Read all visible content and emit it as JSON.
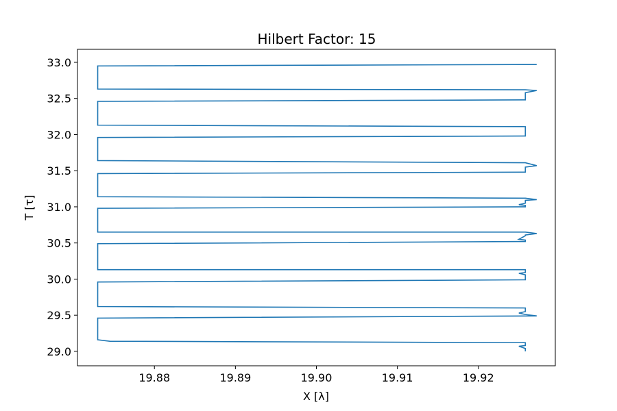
{
  "chart_data": {
    "type": "line",
    "title": "Hilbert Factor: 15",
    "xlabel": "X [λ]",
    "ylabel": "T [τ]",
    "xlim": [
      19.8705,
      19.9295
    ],
    "ylim": [
      28.8,
      33.18
    ],
    "x_ticks": [
      19.88,
      19.89,
      19.9,
      19.91,
      19.92
    ],
    "x_tick_labels": [
      "19.88",
      "19.89",
      "19.90",
      "19.91",
      "19.92"
    ],
    "y_ticks": [
      29.0,
      29.5,
      30.0,
      30.5,
      31.0,
      31.5,
      32.0,
      32.5,
      33.0
    ],
    "y_tick_labels": [
      "29.0",
      "29.5",
      "30.0",
      "30.5",
      "31.0",
      "31.5",
      "32.0",
      "32.5",
      "33.0"
    ],
    "grid": false,
    "line_color": "#1f77b4",
    "series": [
      {
        "x": [
          19.9258,
          19.9258,
          19.925,
          19.9258,
          19.9258,
          19.8745,
          19.873,
          19.873,
          19.9272,
          19.9258,
          19.925,
          19.9258,
          19.9258,
          19.873,
          19.873,
          19.9258,
          19.9258,
          19.925,
          19.9258,
          19.9258,
          19.873,
          19.873,
          19.9258,
          19.9258,
          19.925,
          19.9258,
          19.9258,
          19.9272,
          19.9258,
          19.873,
          19.873,
          19.9258,
          19.9258,
          19.925,
          19.9258,
          19.9258,
          19.9272,
          19.9258,
          19.873,
          19.873,
          19.9258,
          19.9258,
          19.9272,
          19.9258,
          19.873,
          19.873,
          19.9258,
          19.9258,
          19.873,
          19.873,
          19.9258,
          19.9258,
          19.9272,
          19.9258,
          19.873,
          19.873,
          19.9272
        ],
        "y": [
          29.0,
          29.04,
          29.07,
          29.08,
          29.12,
          29.14,
          29.16,
          29.46,
          29.49,
          29.51,
          29.53,
          29.55,
          29.6,
          29.62,
          29.96,
          29.99,
          30.06,
          30.08,
          30.09,
          30.13,
          30.13,
          30.49,
          30.52,
          30.54,
          30.55,
          30.6,
          30.61,
          30.63,
          30.65,
          30.65,
          30.98,
          31.0,
          31.02,
          31.03,
          31.05,
          31.09,
          31.1,
          31.12,
          31.14,
          31.46,
          31.48,
          31.55,
          31.57,
          31.61,
          31.64,
          31.96,
          31.98,
          32.11,
          32.13,
          32.46,
          32.48,
          32.58,
          32.61,
          32.62,
          32.63,
          32.95,
          32.97
        ]
      }
    ]
  }
}
